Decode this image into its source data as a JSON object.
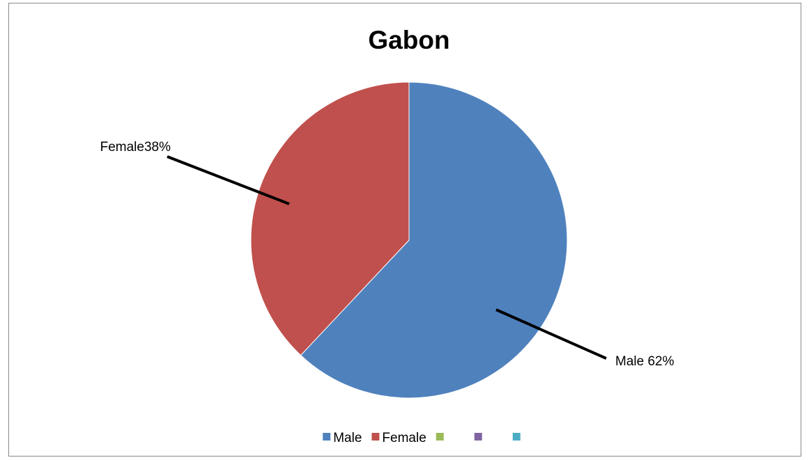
{
  "chart_data": {
    "type": "pie",
    "title": "Gabon",
    "categories": [
      "Male",
      "Female",
      null,
      null,
      null
    ],
    "values": [
      62,
      38,
      0,
      0,
      0
    ],
    "value_labels": [
      "Male 62%",
      "Female38%",
      null,
      null,
      null
    ],
    "colors": [
      "#4f81bd",
      "#c0504d",
      "#9bbb59",
      "#8064a2",
      "#4bacc6"
    ],
    "legend": "bottom"
  }
}
